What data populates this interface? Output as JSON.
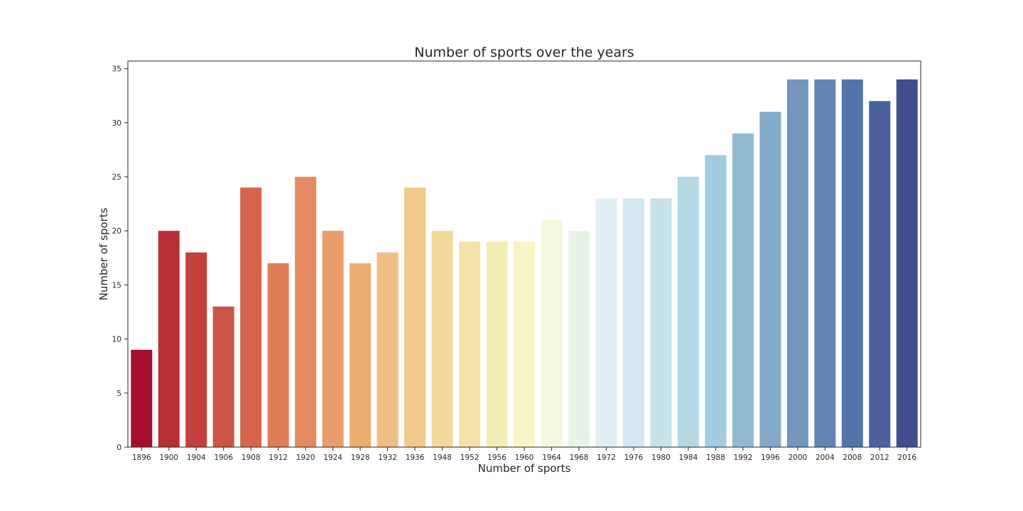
{
  "chart_data": {
    "type": "bar",
    "title": "Number of sports over the years",
    "xlabel": "Number of sports",
    "ylabel": "Number of sports",
    "categories": [
      "1896",
      "1900",
      "1904",
      "1906",
      "1908",
      "1912",
      "1920",
      "1924",
      "1928",
      "1932",
      "1936",
      "1948",
      "1952",
      "1956",
      "1960",
      "1964",
      "1968",
      "1972",
      "1976",
      "1980",
      "1984",
      "1988",
      "1992",
      "1996",
      "2000",
      "2004",
      "2008",
      "2012",
      "2016"
    ],
    "values": [
      9,
      20,
      18,
      13,
      24,
      17,
      25,
      20,
      17,
      18,
      24,
      20,
      19,
      19,
      19,
      21,
      20,
      23,
      23,
      23,
      25,
      27,
      29,
      31,
      34,
      34,
      34,
      32,
      34
    ],
    "colors": [
      "#a50f2d",
      "#b82f35",
      "#c4403b",
      "#ca5545",
      "#d6654c",
      "#e07c57",
      "#e58b63",
      "#ea9d6a",
      "#ebae71",
      "#eebe82",
      "#efca8b",
      "#f1d99a",
      "#f3e3a8",
      "#f5edb6",
      "#f7f5c6",
      "#f3f8dd",
      "#e8f3e7",
      "#e0eff4",
      "#d4e8ef",
      "#c5e1ea",
      "#b3d8e3",
      "#a2cbdd",
      "#92bace",
      "#83aac7",
      "#7296bc",
      "#6285b3",
      "#5474a9",
      "#4b61a0",
      "#404e90"
    ],
    "yticks": [
      0,
      5,
      10,
      15,
      20,
      25,
      30,
      35
    ],
    "ylim": [
      0,
      35.7
    ],
    "grid": false,
    "legend": "none"
  }
}
